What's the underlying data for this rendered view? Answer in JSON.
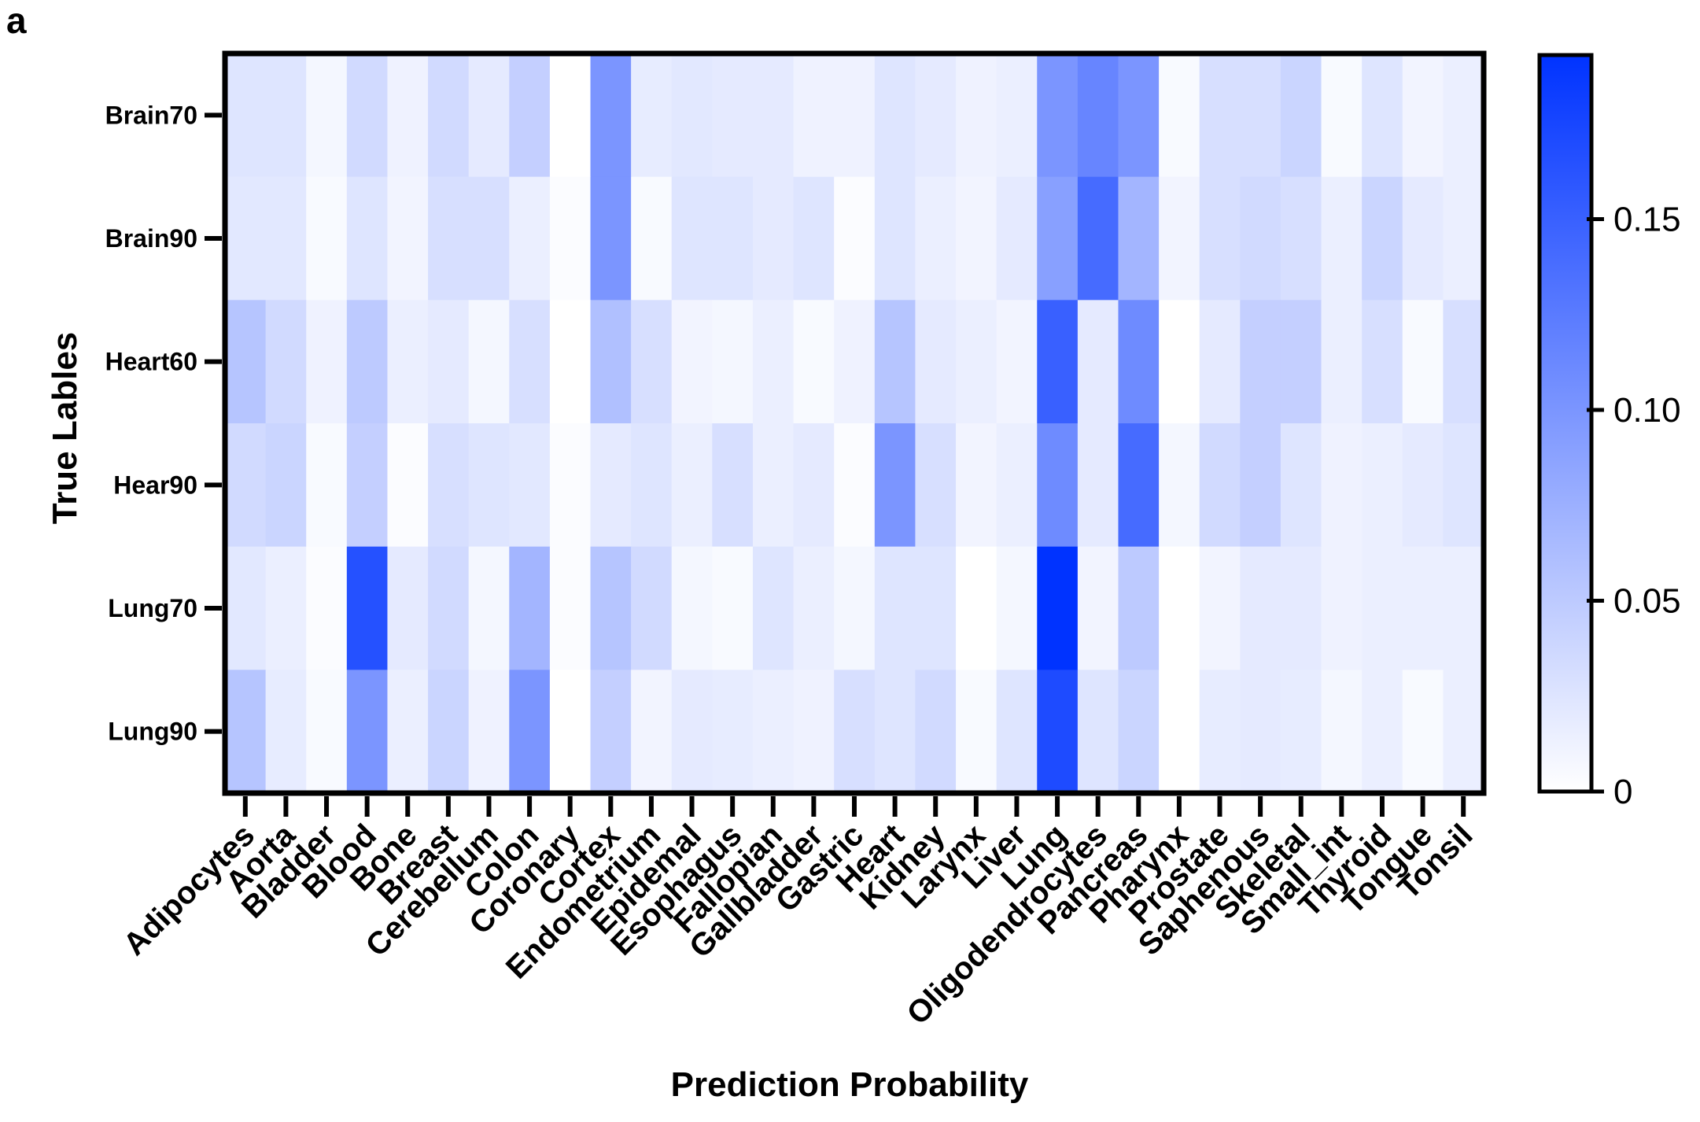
{
  "panel_letter": "a",
  "chart_data": {
    "type": "heatmap",
    "title": "",
    "xlabel": "Prediction Probability",
    "ylabel": "True Lables",
    "x_categories": [
      "Adipocytes",
      "Aorta",
      "Bladder",
      "Blood",
      "Bone",
      "Breast",
      "Cerebellum",
      "Colon",
      "Coronary",
      "Cortex",
      "Endometrium",
      "Epidemal",
      "Esophagus",
      "Fallopian",
      "Gallbladder",
      "Gastric",
      "Heart",
      "Kidney",
      "Larynx",
      "Liver",
      "Lung",
      "Oligodendrocytes",
      "Pancreas",
      "Pharynx",
      "Prostate",
      "Saphenous",
      "Skeletal",
      "Small_int",
      "Thyroid",
      "Tongue",
      "Tonsil"
    ],
    "y_categories": [
      "Brain70",
      "Brain90",
      "Heart60",
      "Hear90",
      "Lung70",
      "Lung90"
    ],
    "values": [
      [
        0.025,
        0.025,
        0.008,
        0.035,
        0.012,
        0.035,
        0.02,
        0.045,
        0.0,
        0.1,
        0.018,
        0.022,
        0.02,
        0.02,
        0.012,
        0.012,
        0.025,
        0.02,
        0.012,
        0.015,
        0.1,
        0.115,
        0.1,
        0.005,
        0.03,
        0.03,
        0.04,
        0.005,
        0.025,
        0.01,
        0.015
      ],
      [
        0.022,
        0.022,
        0.005,
        0.025,
        0.01,
        0.03,
        0.03,
        0.015,
        0.003,
        0.1,
        0.005,
        0.025,
        0.025,
        0.02,
        0.025,
        0.003,
        0.025,
        0.015,
        0.01,
        0.02,
        0.09,
        0.14,
        0.07,
        0.01,
        0.03,
        0.035,
        0.03,
        0.015,
        0.04,
        0.02,
        0.015
      ],
      [
        0.055,
        0.035,
        0.012,
        0.05,
        0.015,
        0.02,
        0.008,
        0.03,
        0.0,
        0.06,
        0.03,
        0.01,
        0.008,
        0.015,
        0.005,
        0.012,
        0.055,
        0.02,
        0.015,
        0.01,
        0.15,
        0.02,
        0.11,
        0.0,
        0.02,
        0.045,
        0.045,
        0.015,
        0.03,
        0.005,
        0.03
      ],
      [
        0.035,
        0.04,
        0.005,
        0.045,
        0.003,
        0.03,
        0.025,
        0.022,
        0.003,
        0.02,
        0.025,
        0.015,
        0.03,
        0.015,
        0.02,
        0.003,
        0.1,
        0.03,
        0.01,
        0.015,
        0.11,
        0.02,
        0.14,
        0.008,
        0.035,
        0.045,
        0.025,
        0.012,
        0.015,
        0.02,
        0.025
      ],
      [
        0.022,
        0.015,
        0.003,
        0.165,
        0.02,
        0.035,
        0.008,
        0.07,
        0.003,
        0.055,
        0.035,
        0.008,
        0.005,
        0.025,
        0.015,
        0.008,
        0.025,
        0.025,
        0.0,
        0.008,
        0.195,
        0.01,
        0.05,
        0.0,
        0.01,
        0.02,
        0.02,
        0.012,
        0.015,
        0.015,
        0.015
      ],
      [
        0.055,
        0.018,
        0.005,
        0.1,
        0.015,
        0.04,
        0.012,
        0.1,
        0.0,
        0.045,
        0.01,
        0.02,
        0.018,
        0.015,
        0.012,
        0.03,
        0.025,
        0.035,
        0.005,
        0.025,
        0.17,
        0.025,
        0.04,
        0.0,
        0.018,
        0.02,
        0.018,
        0.008,
        0.015,
        0.005,
        0.015
      ]
    ],
    "colorscale": {
      "low": "#ffffff",
      "high": "#0033ff",
      "range": [
        0,
        0.193
      ]
    },
    "colorbar": {
      "ticks": [
        0,
        0.05,
        0.1,
        0.15
      ],
      "tick_labels": [
        "0",
        "0.05",
        "0.10",
        "0.15"
      ]
    },
    "grid": false,
    "legend": "colorbar-right"
  }
}
